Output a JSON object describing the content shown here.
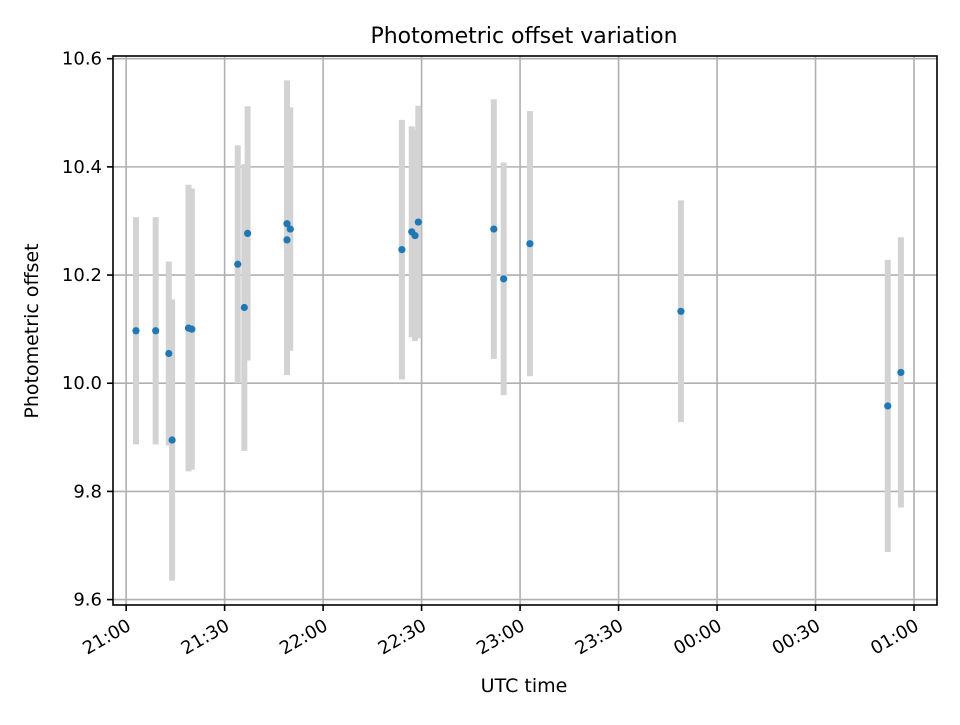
{
  "chart_data": {
    "type": "scatter",
    "title": "Photometric offset variation",
    "xlabel": "UTC time",
    "ylabel": "Photometric offset",
    "x_ticks": [
      "21:00",
      "21:30",
      "22:00",
      "22:30",
      "23:00",
      "23:30",
      "00:00",
      "00:30",
      "01:00"
    ],
    "y_ticks": [
      "9.6",
      "9.8",
      "10.0",
      "10.2",
      "10.4",
      "10.6"
    ],
    "y_tick_values": [
      9.6,
      9.8,
      10.0,
      10.2,
      10.4,
      10.6
    ],
    "xlim": [
      "20:56",
      "01:07"
    ],
    "ylim": [
      9.59,
      10.605
    ],
    "grid": true,
    "x_tick_rotation": 30,
    "marker_color": "#1f77b4",
    "errorbar_color": "#d3d3d3",
    "points": [
      {
        "t": "21:03",
        "y": 10.097,
        "err": 0.21
      },
      {
        "t": "21:09",
        "y": 10.097,
        "err": 0.21
      },
      {
        "t": "21:13",
        "y": 10.055,
        "err": 0.17
      },
      {
        "t": "21:14",
        "y": 9.895,
        "err": 0.26
      },
      {
        "t": "21:19",
        "y": 10.102,
        "err": 0.265
      },
      {
        "t": "21:20",
        "y": 10.1,
        "err": 0.26
      },
      {
        "t": "21:34",
        "y": 10.22,
        "err": 0.22
      },
      {
        "t": "21:36",
        "y": 10.14,
        "err": 0.265
      },
      {
        "t": "21:37",
        "y": 10.277,
        "err": 0.235
      },
      {
        "t": "21:49",
        "y": 10.265,
        "err": 0.25
      },
      {
        "t": "21:49",
        "y": 10.295,
        "err": 0.265
      },
      {
        "t": "21:50",
        "y": 10.285,
        "err": 0.225
      },
      {
        "t": "22:24",
        "y": 10.247,
        "err": 0.24
      },
      {
        "t": "22:27",
        "y": 10.28,
        "err": 0.195
      },
      {
        "t": "22:28",
        "y": 10.273,
        "err": 0.195
      },
      {
        "t": "22:29",
        "y": 10.298,
        "err": 0.215
      },
      {
        "t": "22:52",
        "y": 10.285,
        "err": 0.24
      },
      {
        "t": "22:55",
        "y": 10.193,
        "err": 0.215
      },
      {
        "t": "23:03",
        "y": 10.258,
        "err": 0.245
      },
      {
        "t": "23:49",
        "y": 10.133,
        "err": 0.205
      },
      {
        "t": "00:52",
        "y": 9.958,
        "err": 0.27
      },
      {
        "t": "00:56",
        "y": 10.02,
        "err": 0.25
      }
    ]
  }
}
